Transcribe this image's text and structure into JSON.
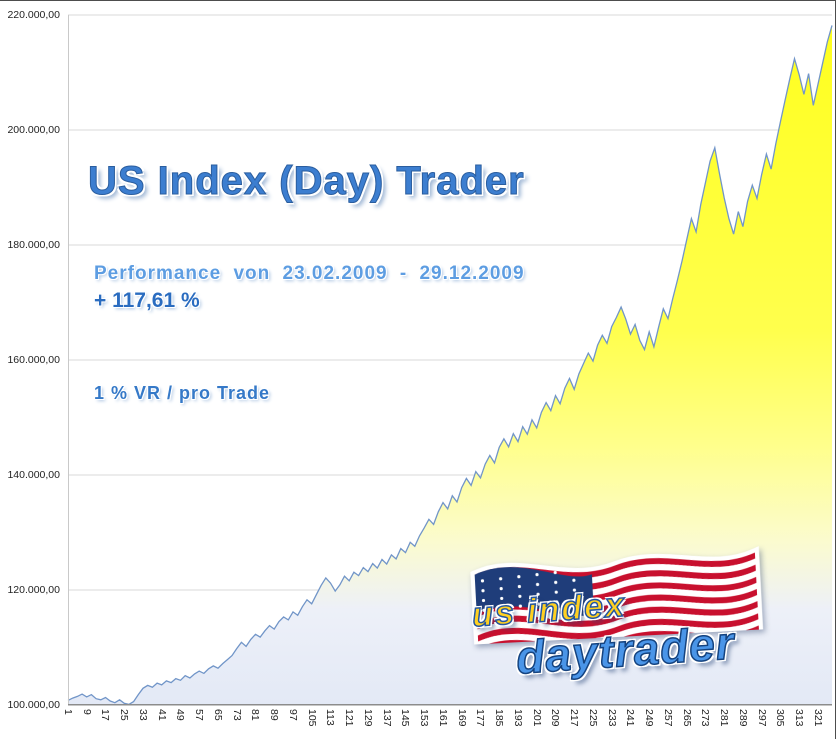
{
  "title": {
    "text": "US Index (Day) Trader"
  },
  "annotations": {
    "performance": "Performance von 23.02.2009 - 29.12.2009",
    "gain": "+ 117,61 %",
    "risk": "1 % VR / pro Trade"
  },
  "logo": {
    "line1": "us index",
    "line2": "daytrader",
    "icon": "us-flag-icon"
  },
  "colors": {
    "title_blue": "#3c7ed0",
    "annotation_blue": "#2a6cc0",
    "line_blue": "#7195c8",
    "fill_yellow": "#ffff33",
    "fill_bottom": "#e3e9f6",
    "grid_gray": "#d9d9d9"
  },
  "chart_data": {
    "type": "area",
    "title": "US Index (Day) Trader",
    "xlabel": "",
    "ylabel": "",
    "grid": true,
    "legend": "none",
    "ylim": [
      100,
      220
    ],
    "unit_scale": 1000,
    "y_tick_labels": [
      "220.000,00",
      "200.000,00",
      "180.000,00",
      "160.000,00",
      "140.000,00",
      "120.000,00",
      "100.000,00"
    ],
    "x_tick_labels": [
      "1",
      "9",
      "17",
      "25",
      "33",
      "41",
      "49",
      "57",
      "65",
      "73",
      "81",
      "89",
      "97",
      "105",
      "113",
      "121",
      "129",
      "137",
      "145",
      "153",
      "161",
      "169",
      "177",
      "185",
      "193",
      "201",
      "209",
      "217",
      "225",
      "233",
      "241",
      "249",
      "257",
      "265",
      "273",
      "281",
      "289",
      "297",
      "305",
      "313",
      "321"
    ],
    "x_start": 1,
    "x_step": 2,
    "values": [
      100.8,
      101.2,
      101.5,
      101.9,
      101.4,
      101.8,
      101.1,
      100.9,
      101.3,
      100.7,
      100.4,
      100.9,
      100.3,
      100.1,
      100.6,
      101.8,
      102.9,
      103.4,
      103.1,
      103.8,
      103.5,
      104.2,
      103.9,
      104.6,
      104.3,
      105.1,
      104.7,
      105.4,
      105.9,
      105.5,
      106.3,
      106.8,
      106.4,
      107.2,
      107.9,
      108.6,
      109.8,
      110.9,
      110.2,
      111.4,
      112.3,
      111.8,
      112.9,
      113.8,
      113.2,
      114.5,
      115.3,
      114.8,
      116.2,
      115.6,
      117.1,
      118.3,
      117.6,
      119.2,
      120.8,
      122.1,
      121.2,
      119.8,
      120.9,
      122.4,
      121.6,
      123.1,
      122.5,
      123.9,
      123.2,
      124.6,
      123.8,
      125.3,
      124.5,
      126.1,
      125.4,
      127.2,
      126.5,
      128.3,
      127.6,
      129.4,
      130.8,
      132.3,
      131.4,
      133.6,
      135.2,
      134.1,
      136.4,
      135.3,
      137.8,
      139.4,
      138.2,
      140.6,
      139.5,
      141.9,
      143.4,
      142.1,
      144.8,
      146.3,
      144.9,
      147.2,
      145.8,
      148.4,
      147.1,
      149.6,
      148.2,
      150.9,
      152.6,
      151.2,
      153.8,
      152.4,
      155.1,
      156.8,
      154.9,
      157.6,
      159.4,
      161.2,
      159.8,
      162.6,
      164.3,
      162.9,
      165.8,
      167.4,
      169.2,
      167.1,
      164.5,
      166.2,
      163.4,
      161.8,
      164.9,
      162.3,
      165.7,
      168.9,
      167.2,
      170.6,
      173.8,
      177.2,
      180.9,
      184.6,
      182.3,
      187.1,
      190.8,
      194.6,
      196.9,
      192.4,
      188.2,
      184.6,
      181.9,
      185.8,
      183.2,
      187.6,
      190.4,
      188.1,
      192.3,
      195.8,
      193.2,
      197.6,
      201.4,
      205.2,
      208.9,
      212.4,
      209.6,
      206.2,
      209.8,
      204.3,
      207.9,
      211.6,
      215.3,
      218.2
    ],
    "line_color": "#7195c8",
    "fill_gradient": [
      {
        "offset": 0.0,
        "color": "#ffff1e"
      },
      {
        "offset": 0.45,
        "color": "#ffff4d"
      },
      {
        "offset": 0.62,
        "color": "#ffff8c"
      },
      {
        "offset": 0.76,
        "color": "#fbfbcf"
      },
      {
        "offset": 0.86,
        "color": "#edf0f8"
      },
      {
        "offset": 1.0,
        "color": "#e3e9f6"
      }
    ]
  }
}
